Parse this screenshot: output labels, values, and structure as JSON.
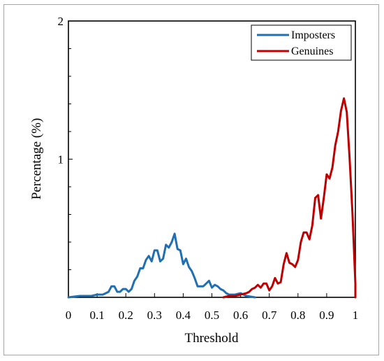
{
  "chart_data": {
    "type": "line",
    "title": "",
    "xlabel": "Threshold",
    "ylabel": "Percentage (%)",
    "xlim": [
      0,
      1
    ],
    "ylim": [
      0,
      2
    ],
    "x_ticks": [
      "0",
      "0.1",
      "0.2",
      "0.3",
      "0.4",
      "0.5",
      "0.6",
      "0.7",
      "0.8",
      "0.9",
      "1"
    ],
    "x_tick_values": [
      0,
      0.1,
      0.2,
      0.3,
      0.4,
      0.5,
      0.6,
      0.7,
      0.8,
      0.9,
      1
    ],
    "y_ticks": [
      "1",
      "2"
    ],
    "y_tick_values": [
      1,
      2
    ],
    "y_minor_ticks": [
      0.2,
      0.4,
      0.6,
      0.8,
      1.2,
      1.4,
      1.6,
      1.8
    ],
    "grid": false,
    "legend_position": "top-right",
    "series": [
      {
        "name": "Imposters",
        "color": "#1f6fb2",
        "points": [
          [
            0.0,
            0.0
          ],
          [
            0.04,
            0.01
          ],
          [
            0.08,
            0.01
          ],
          [
            0.1,
            0.02
          ],
          [
            0.12,
            0.02
          ],
          [
            0.14,
            0.04
          ],
          [
            0.15,
            0.08
          ],
          [
            0.16,
            0.08
          ],
          [
            0.17,
            0.04
          ],
          [
            0.18,
            0.04
          ],
          [
            0.19,
            0.06
          ],
          [
            0.2,
            0.06
          ],
          [
            0.21,
            0.04
          ],
          [
            0.22,
            0.06
          ],
          [
            0.23,
            0.12
          ],
          [
            0.24,
            0.15
          ],
          [
            0.25,
            0.21
          ],
          [
            0.26,
            0.21
          ],
          [
            0.27,
            0.27
          ],
          [
            0.28,
            0.3
          ],
          [
            0.29,
            0.26
          ],
          [
            0.3,
            0.34
          ],
          [
            0.31,
            0.34
          ],
          [
            0.32,
            0.26
          ],
          [
            0.33,
            0.28
          ],
          [
            0.34,
            0.38
          ],
          [
            0.35,
            0.36
          ],
          [
            0.36,
            0.4
          ],
          [
            0.37,
            0.46
          ],
          [
            0.38,
            0.35
          ],
          [
            0.39,
            0.34
          ],
          [
            0.4,
            0.24
          ],
          [
            0.41,
            0.28
          ],
          [
            0.42,
            0.22
          ],
          [
            0.43,
            0.19
          ],
          [
            0.44,
            0.14
          ],
          [
            0.45,
            0.08
          ],
          [
            0.46,
            0.08
          ],
          [
            0.47,
            0.08
          ],
          [
            0.48,
            0.1
          ],
          [
            0.49,
            0.12
          ],
          [
            0.5,
            0.07
          ],
          [
            0.51,
            0.09
          ],
          [
            0.52,
            0.08
          ],
          [
            0.53,
            0.06
          ],
          [
            0.54,
            0.05
          ],
          [
            0.55,
            0.03
          ],
          [
            0.56,
            0.02
          ],
          [
            0.58,
            0.02
          ],
          [
            0.6,
            0.03
          ],
          [
            0.62,
            0.01
          ],
          [
            0.65,
            0.0
          ]
        ]
      },
      {
        "name": "Genuines",
        "color": "#c00000",
        "points": [
          [
            0.54,
            0.0
          ],
          [
            0.56,
            0.01
          ],
          [
            0.58,
            0.01
          ],
          [
            0.6,
            0.02
          ],
          [
            0.62,
            0.03
          ],
          [
            0.63,
            0.04
          ],
          [
            0.64,
            0.06
          ],
          [
            0.65,
            0.07
          ],
          [
            0.66,
            0.09
          ],
          [
            0.67,
            0.07
          ],
          [
            0.68,
            0.1
          ],
          [
            0.69,
            0.1
          ],
          [
            0.7,
            0.05
          ],
          [
            0.71,
            0.08
          ],
          [
            0.72,
            0.14
          ],
          [
            0.73,
            0.1
          ],
          [
            0.74,
            0.11
          ],
          [
            0.75,
            0.24
          ],
          [
            0.76,
            0.32
          ],
          [
            0.77,
            0.25
          ],
          [
            0.78,
            0.24
          ],
          [
            0.79,
            0.22
          ],
          [
            0.8,
            0.27
          ],
          [
            0.81,
            0.4
          ],
          [
            0.82,
            0.47
          ],
          [
            0.83,
            0.47
          ],
          [
            0.84,
            0.42
          ],
          [
            0.85,
            0.52
          ],
          [
            0.86,
            0.72
          ],
          [
            0.87,
            0.74
          ],
          [
            0.88,
            0.57
          ],
          [
            0.89,
            0.72
          ],
          [
            0.9,
            0.89
          ],
          [
            0.91,
            0.86
          ],
          [
            0.92,
            0.94
          ],
          [
            0.93,
            1.1
          ],
          [
            0.94,
            1.2
          ],
          [
            0.95,
            1.35
          ],
          [
            0.96,
            1.44
          ],
          [
            0.97,
            1.34
          ],
          [
            0.98,
            1.0
          ],
          [
            0.99,
            0.6
          ],
          [
            1.0,
            0.1
          ],
          [
            1.0,
            0.0
          ]
        ]
      }
    ]
  }
}
